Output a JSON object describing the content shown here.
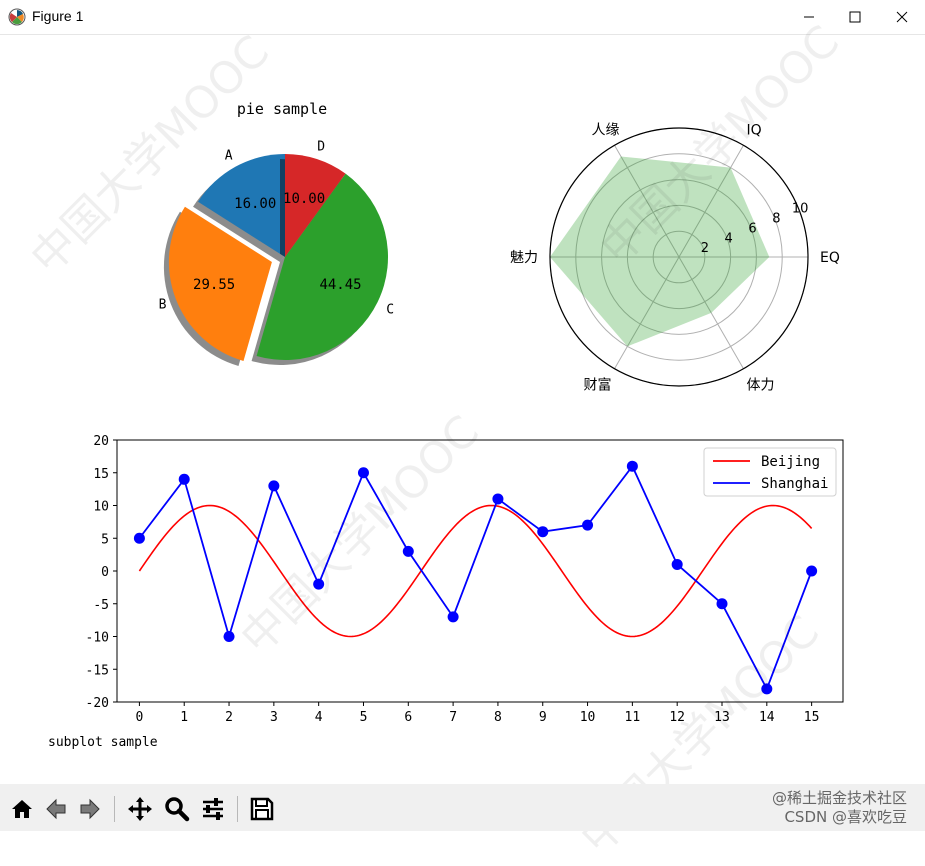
{
  "window": {
    "title": "Figure 1"
  },
  "watermarks": {
    "site": "@稀土掘金技术社区",
    "author": "CSDN @喜欢吃豆",
    "diagonal": "中国大学MOOC"
  },
  "toolbar": {
    "icons": [
      "home-icon",
      "back-icon",
      "forward-icon",
      "pan-icon",
      "zoom-icon",
      "configure-subplots-icon",
      "save-icon"
    ]
  },
  "chart_data": [
    {
      "type": "pie",
      "title": "pie sample",
      "labels": [
        "A",
        "B",
        "C",
        "D"
      ],
      "values": [
        16.0,
        29.55,
        44.45,
        10.0
      ],
      "autopct": [
        "16.00",
        "29.55",
        "44.45",
        "10.00"
      ],
      "colors": [
        "#1f77b4",
        "#ff7f0e",
        "#2ca02c",
        "#d62728"
      ],
      "explode": "B",
      "shadow": true,
      "startangle": 90
    },
    {
      "type": "radar",
      "categories": [
        "EQ",
        "IQ",
        "人缘",
        "魅力",
        "财富",
        "体力"
      ],
      "values": [
        7,
        8,
        9,
        10,
        8,
        5
      ],
      "rticks": [
        "2",
        "4",
        "6",
        "8",
        "10"
      ],
      "rlim": [
        0,
        10
      ],
      "fill_color": "#2ca02c",
      "fill_alpha": 0.3,
      "grid": true
    },
    {
      "type": "line",
      "xlabel": "subplot sample",
      "xticks": [
        "0",
        "1",
        "2",
        "3",
        "4",
        "5",
        "6",
        "7",
        "8",
        "9",
        "10",
        "11",
        "12",
        "13",
        "14",
        "15"
      ],
      "yticks": [
        "-20",
        "-15",
        "-10",
        "-5",
        "0",
        "5",
        "10",
        "15",
        "20"
      ],
      "xlim": [
        -0.5,
        15.7
      ],
      "ylim": [
        -20,
        20
      ],
      "legend_placement": "top-right",
      "series": [
        {
          "name": "Beijing",
          "color": "#ff0000",
          "function": "10*sin(x)",
          "x_range": [
            0,
            15
          ]
        },
        {
          "name": "Shanghai",
          "color": "#0000ff",
          "marker": "o",
          "x": [
            0,
            1,
            2,
            3,
            4,
            5,
            6,
            7,
            8,
            9,
            10,
            11,
            12,
            13,
            14,
            15
          ],
          "y": [
            5,
            14,
            -10,
            13,
            -2,
            15,
            3,
            -7,
            11,
            6,
            7,
            16,
            1,
            -5,
            -18,
            0
          ]
        }
      ]
    }
  ]
}
